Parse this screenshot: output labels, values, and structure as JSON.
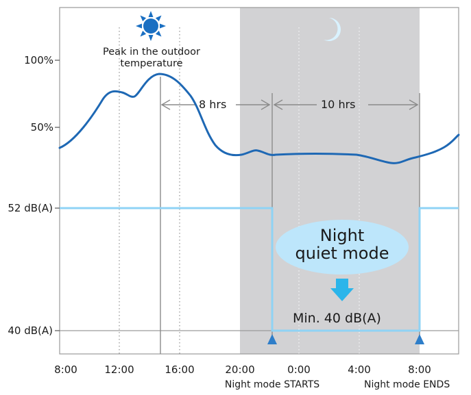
{
  "y_labels": {
    "pct100": "100%",
    "pct50": "50%",
    "db52": "52 dB(A)",
    "db40": "40 dB(A)"
  },
  "x_ticks": [
    "8:00",
    "12:00",
    "16:00",
    "20:00",
    "0:00",
    "4:00",
    "8:00"
  ],
  "x_captions": {
    "start": "Night mode STARTS",
    "end": "Night mode ENDS"
  },
  "peak_annotation": {
    "line1": "Peak in the outdoor",
    "line2": "temperature"
  },
  "durations": {
    "gap": "8 hrs",
    "night": "10 hrs"
  },
  "night_bubble": {
    "line1": "Night",
    "line2": "quiet mode"
  },
  "min_label": "Min. 40 dB(A)",
  "icons": {
    "sun": "sun-icon",
    "moon": "moon-icon",
    "arrow": "down-arrow-icon",
    "markers": "triangle-marker-icon"
  },
  "colors": {
    "temperature_curve": "#1e68b4",
    "noise_line": "#8fd3f5",
    "night_shade": "#d2d2d4",
    "bubble": "#bde6fb",
    "arrow": "#2bb5ea",
    "sun": "#1a6fc2",
    "moon": "#d9f2ff",
    "marker": "#2e7ec9"
  }
}
